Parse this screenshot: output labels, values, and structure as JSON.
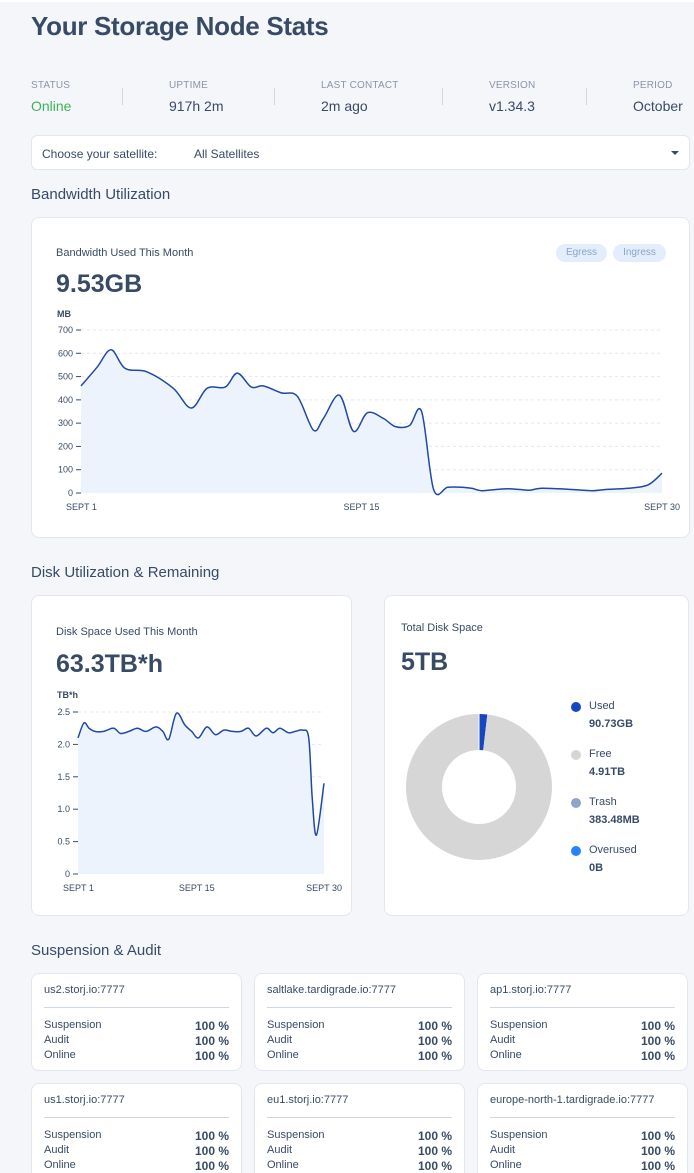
{
  "header": {
    "title": "Your Storage Node Stats"
  },
  "stats": [
    {
      "label": "STATUS",
      "value": "Online"
    },
    {
      "label": "UPTIME",
      "value": "917h 2m"
    },
    {
      "label": "LAST CONTACT",
      "value": "2m ago"
    },
    {
      "label": "VERSION",
      "value": "v1.34.3"
    },
    {
      "label": "PERIOD",
      "value": "October"
    }
  ],
  "satellite_select": {
    "label": "Choose your satellite:",
    "value": "All Satellites"
  },
  "sections": {
    "bandwidth": "Bandwidth Utilization",
    "disk": "Disk Utilization & Remaining",
    "suspension": "Suspension & Audit"
  },
  "bandwidth_card": {
    "title": "Bandwidth Used This Month",
    "value": "9.53GB",
    "unit": "MB",
    "egress_label": "Egress",
    "ingress_label": "Ingress"
  },
  "disk_card": {
    "title": "Disk Space Used This Month",
    "value": "63.3TB*h",
    "unit": "TB*h"
  },
  "total_card": {
    "title": "Total Disk Space",
    "value": "5TB",
    "legend": [
      {
        "name": "Used",
        "value": "90.73GB",
        "color": "#1447c0"
      },
      {
        "name": "Free",
        "value": "4.91TB",
        "color": "#d6d6d6"
      },
      {
        "name": "Trash",
        "value": "383.48MB",
        "color": "#8fa7c6"
      },
      {
        "name": "Overused",
        "value": "0B",
        "color": "#2683ff"
      }
    ]
  },
  "chart_data": [
    {
      "type": "area",
      "title": "Bandwidth Used This Month",
      "ylabel": "MB",
      "ylim": [
        0,
        700
      ],
      "yticks": [
        "700",
        "600",
        "500",
        "400",
        "300",
        "200",
        "100",
        "0"
      ],
      "xticks": [
        "SEPT 1",
        "SEPT 15",
        "SEPT 30"
      ],
      "x": [
        1,
        1.8,
        2.5,
        3.2,
        4.3,
        5.6,
        6.5,
        7.3,
        8.2,
        8.8,
        9.5,
        10.1,
        11.0,
        11.8,
        12.6,
        13.1,
        13.9,
        14.6,
        15.3,
        16.1,
        16.7,
        17.4,
        18.0,
        18.6,
        19.3,
        20.0,
        20.5,
        21.0,
        21.7,
        22.3,
        22.9,
        23.4,
        24.0,
        25.5,
        26.5,
        27.2,
        28.3,
        29.3,
        30
      ],
      "values": [
        460,
        540,
        615,
        535,
        520,
        450,
        365,
        450,
        455,
        515,
        455,
        460,
        430,
        415,
        270,
        320,
        420,
        265,
        345,
        320,
        285,
        290,
        350,
        15,
        25,
        25,
        20,
        10,
        15,
        18,
        15,
        12,
        20,
        15,
        10,
        15,
        20,
        35,
        85
      ]
    },
    {
      "type": "area",
      "title": "Disk Space Used This Month",
      "ylabel": "TB*h",
      "ylim": [
        0,
        2.5
      ],
      "yticks": [
        "2.5",
        "2.0",
        "1.5",
        "1.0",
        "0.5",
        "0"
      ],
      "xticks": [
        "SEPT 1",
        "SEPT 15",
        "SEPT 30"
      ],
      "x": [
        1,
        1.7,
        2.3,
        3.0,
        4.0,
        5.2,
        6.0,
        7.0,
        8.0,
        9.0,
        10.2,
        11.0,
        11.7,
        12.6,
        13.6,
        14.4,
        15.2,
        16.2,
        17.2,
        18.2,
        19.2,
        20.2,
        21.1,
        22.0,
        23.2,
        24.0,
        24.8,
        25.8,
        26.6,
        27.5,
        28.2,
        28.6,
        29.1,
        30
      ],
      "values": [
        2.1,
        2.33,
        2.25,
        2.2,
        2.2,
        2.25,
        2.17,
        2.2,
        2.25,
        2.2,
        2.27,
        2.2,
        2.08,
        2.48,
        2.3,
        2.2,
        2.1,
        2.27,
        2.15,
        2.22,
        2.2,
        2.2,
        2.25,
        2.13,
        2.25,
        2.18,
        2.25,
        2.18,
        2.2,
        2.22,
        2.1,
        1.2,
        0.6,
        1.4
      ]
    },
    {
      "type": "pie",
      "title": "Total Disk Space",
      "labels": [
        "Used",
        "Free",
        "Trash",
        "Overused"
      ],
      "values": [
        0.09073,
        4.91,
        0.00038,
        0
      ],
      "units": "TB"
    }
  ],
  "satellites": [
    {
      "name": "us2.storj.io:7777",
      "rows": [
        {
          "k": "Suspension",
          "v": "100 %"
        },
        {
          "k": "Audit",
          "v": "100 %"
        },
        {
          "k": "Online",
          "v": "100 %"
        }
      ]
    },
    {
      "name": "saltlake.tardigrade.io:7777",
      "rows": [
        {
          "k": "Suspension",
          "v": "100 %"
        },
        {
          "k": "Audit",
          "v": "100 %"
        },
        {
          "k": "Online",
          "v": "100 %"
        }
      ]
    },
    {
      "name": "ap1.storj.io:7777",
      "rows": [
        {
          "k": "Suspension",
          "v": "100 %"
        },
        {
          "k": "Audit",
          "v": "100 %"
        },
        {
          "k": "Online",
          "v": "100 %"
        }
      ]
    },
    {
      "name": "us1.storj.io:7777",
      "rows": [
        {
          "k": "Suspension",
          "v": "100 %"
        },
        {
          "k": "Audit",
          "v": "100 %"
        },
        {
          "k": "Online",
          "v": "100 %"
        }
      ]
    },
    {
      "name": "eu1.storj.io:7777",
      "rows": [
        {
          "k": "Suspension",
          "v": "100 %"
        },
        {
          "k": "Audit",
          "v": "100 %"
        },
        {
          "k": "Online",
          "v": "100 %"
        }
      ]
    },
    {
      "name": "europe-north-1.tardigrade.io:7777",
      "rows": [
        {
          "k": "Suspension",
          "v": "100 %"
        },
        {
          "k": "Audit",
          "v": "100 %"
        },
        {
          "k": "Online",
          "v": "100 %"
        }
      ]
    }
  ]
}
